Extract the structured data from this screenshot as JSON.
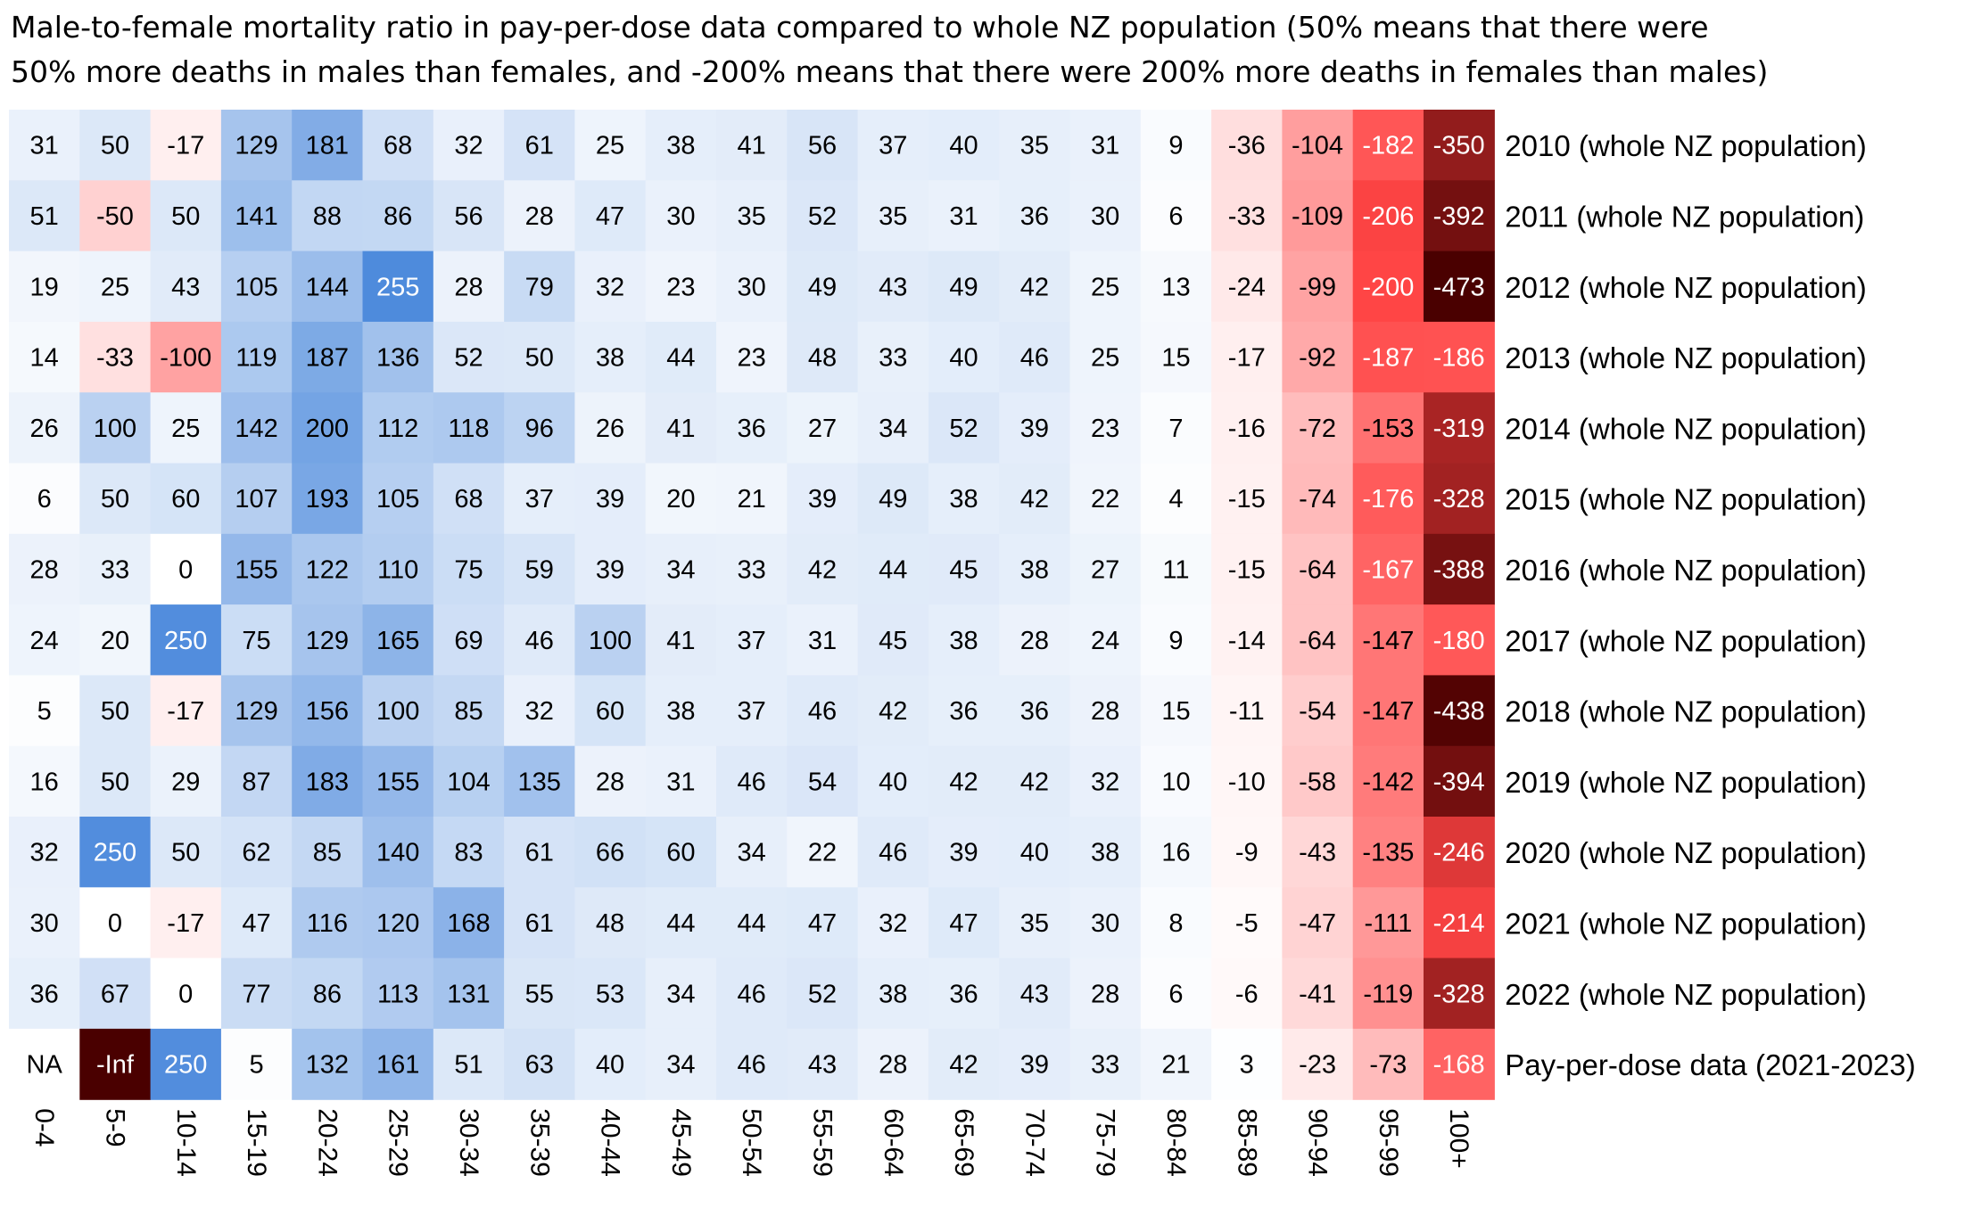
{
  "chart_data": {
    "type": "heatmap",
    "title": "Male-to-female mortality ratio in pay-per-dose data compared to whole NZ population (50% means that there were\n50% more deaths in males than females, and -200% means that there were 200% more deaths in females than males)",
    "columns": [
      "0-4",
      "5-9",
      "10-14",
      "15-19",
      "20-24",
      "25-29",
      "30-34",
      "35-39",
      "40-44",
      "45-49",
      "50-54",
      "55-59",
      "60-64",
      "65-69",
      "70-74",
      "75-79",
      "80-84",
      "85-89",
      "90-94",
      "95-99",
      "100+"
    ],
    "rows": [
      {
        "label": "2010 (whole NZ population)",
        "values": [
          "31",
          "50",
          "-17",
          "129",
          "181",
          "68",
          "32",
          "61",
          "25",
          "38",
          "41",
          "56",
          "37",
          "40",
          "35",
          "31",
          "9",
          "-36",
          "-104",
          "-182",
          "-350"
        ]
      },
      {
        "label": "2011 (whole NZ population)",
        "values": [
          "51",
          "-50",
          "50",
          "141",
          "88",
          "86",
          "56",
          "28",
          "47",
          "30",
          "35",
          "52",
          "35",
          "31",
          "36",
          "30",
          "6",
          "-33",
          "-109",
          "-206",
          "-392"
        ]
      },
      {
        "label": "2012 (whole NZ population)",
        "values": [
          "19",
          "25",
          "43",
          "105",
          "144",
          "255",
          "28",
          "79",
          "32",
          "23",
          "30",
          "49",
          "43",
          "49",
          "42",
          "25",
          "13",
          "-24",
          "-99",
          "-200",
          "-473"
        ]
      },
      {
        "label": "2013 (whole NZ population)",
        "values": [
          "14",
          "-33",
          "-100",
          "119",
          "187",
          "136",
          "52",
          "50",
          "38",
          "44",
          "23",
          "48",
          "33",
          "40",
          "46",
          "25",
          "15",
          "-17",
          "-92",
          "-187",
          "-186"
        ]
      },
      {
        "label": "2014 (whole NZ population)",
        "values": [
          "26",
          "100",
          "25",
          "142",
          "200",
          "112",
          "118",
          "96",
          "26",
          "41",
          "36",
          "27",
          "34",
          "52",
          "39",
          "23",
          "7",
          "-16",
          "-72",
          "-153",
          "-319"
        ]
      },
      {
        "label": "2015 (whole NZ population)",
        "values": [
          "6",
          "50",
          "60",
          "107",
          "193",
          "105",
          "68",
          "37",
          "39",
          "20",
          "21",
          "39",
          "49",
          "38",
          "42",
          "22",
          "4",
          "-15",
          "-74",
          "-176",
          "-328"
        ]
      },
      {
        "label": "2016 (whole NZ population)",
        "values": [
          "28",
          "33",
          "0",
          "155",
          "122",
          "110",
          "75",
          "59",
          "39",
          "34",
          "33",
          "42",
          "44",
          "45",
          "38",
          "27",
          "11",
          "-15",
          "-64",
          "-167",
          "-388"
        ]
      },
      {
        "label": "2017 (whole NZ population)",
        "values": [
          "24",
          "20",
          "250",
          "75",
          "129",
          "165",
          "69",
          "46",
          "100",
          "41",
          "37",
          "31",
          "45",
          "38",
          "28",
          "24",
          "9",
          "-14",
          "-64",
          "-147",
          "-180"
        ]
      },
      {
        "label": "2018 (whole NZ population)",
        "values": [
          "5",
          "50",
          "-17",
          "129",
          "156",
          "100",
          "85",
          "32",
          "60",
          "38",
          "37",
          "46",
          "42",
          "36",
          "36",
          "28",
          "15",
          "-11",
          "-54",
          "-147",
          "-438"
        ]
      },
      {
        "label": "2019 (whole NZ population)",
        "values": [
          "16",
          "50",
          "29",
          "87",
          "183",
          "155",
          "104",
          "135",
          "28",
          "31",
          "46",
          "54",
          "40",
          "42",
          "42",
          "32",
          "10",
          "-10",
          "-58",
          "-142",
          "-394"
        ]
      },
      {
        "label": "2020 (whole NZ population)",
        "values": [
          "32",
          "250",
          "50",
          "62",
          "85",
          "140",
          "83",
          "61",
          "66",
          "60",
          "34",
          "22",
          "46",
          "39",
          "40",
          "38",
          "16",
          "-9",
          "-43",
          "-135",
          "-246"
        ]
      },
      {
        "label": "2021 (whole NZ population)",
        "values": [
          "30",
          "0",
          "-17",
          "47",
          "116",
          "120",
          "168",
          "61",
          "48",
          "44",
          "44",
          "47",
          "32",
          "47",
          "35",
          "30",
          "8",
          "-5",
          "-47",
          "-111",
          "-214"
        ]
      },
      {
        "label": "2022 (whole NZ population)",
        "values": [
          "36",
          "67",
          "0",
          "77",
          "86",
          "113",
          "131",
          "55",
          "53",
          "34",
          "46",
          "52",
          "38",
          "36",
          "43",
          "28",
          "6",
          "-6",
          "-41",
          "-119",
          "-328"
        ]
      },
      {
        "label": "Pay-per-dose data (2021-2023)",
        "values": [
          "NA",
          "-Inf",
          "250",
          "5",
          "132",
          "161",
          "51",
          "63",
          "40",
          "34",
          "46",
          "43",
          "28",
          "42",
          "39",
          "33",
          "21",
          "3",
          "-23",
          "-73",
          "-168"
        ]
      }
    ],
    "colormap": {
      "positive_max_value": 300,
      "positive_max_color": "#2f76d6",
      "negative_max_value": -200,
      "negative_mid_color": "#ff4545",
      "negative_extreme_value": -450,
      "negative_extreme_color": "#4a0000",
      "zero_color": "#ffffff",
      "na_color": "#ffffff",
      "neg_inf_color": "#4a0000"
    },
    "legend": "none",
    "grid": false
  }
}
